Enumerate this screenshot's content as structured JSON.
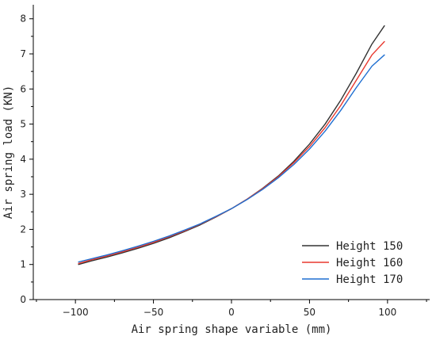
{
  "chart_data": {
    "type": "line",
    "xlabel": "Air spring shape variable (mm)",
    "ylabel": "Air spring load (KN)",
    "xlim": [
      -127,
      127
    ],
    "ylim": [
      0,
      8.4
    ],
    "x_ticks": [
      -100,
      -50,
      0,
      50,
      100
    ],
    "x_tick_labels": [
      "−100",
      "−50",
      "0",
      "50",
      "100"
    ],
    "y_ticks": [
      0,
      1,
      2,
      3,
      4,
      5,
      6,
      7,
      8
    ],
    "y_tick_labels": [
      "0",
      "1",
      "2",
      "3",
      "4",
      "5",
      "6",
      "7",
      "8"
    ],
    "grid": false,
    "legend_position": "bottom-right",
    "x": [
      -98,
      -90,
      -80,
      -70,
      -60,
      -50,
      -40,
      -30,
      -20,
      -10,
      0,
      10,
      20,
      30,
      40,
      50,
      60,
      70,
      80,
      90,
      98
    ],
    "series": [
      {
        "name": "Height 150",
        "color": "#333333",
        "values": [
          1.0,
          1.1,
          1.21,
          1.33,
          1.46,
          1.6,
          1.76,
          1.94,
          2.13,
          2.35,
          2.59,
          2.86,
          3.17,
          3.52,
          3.94,
          4.43,
          5.0,
          5.68,
          6.45,
          7.28,
          7.8
        ]
      },
      {
        "name": "Height 160",
        "color": "#e8392f",
        "values": [
          1.03,
          1.13,
          1.24,
          1.36,
          1.49,
          1.63,
          1.79,
          1.96,
          2.15,
          2.36,
          2.59,
          2.86,
          3.16,
          3.5,
          3.9,
          4.36,
          4.9,
          5.53,
          6.25,
          6.97,
          7.35
        ]
      },
      {
        "name": "Height 170",
        "color": "#1f6fd1",
        "values": [
          1.07,
          1.16,
          1.27,
          1.39,
          1.52,
          1.66,
          1.81,
          1.98,
          2.16,
          2.37,
          2.59,
          2.85,
          3.14,
          3.47,
          3.85,
          4.29,
          4.8,
          5.39,
          6.04,
          6.65,
          6.97
        ]
      }
    ]
  }
}
